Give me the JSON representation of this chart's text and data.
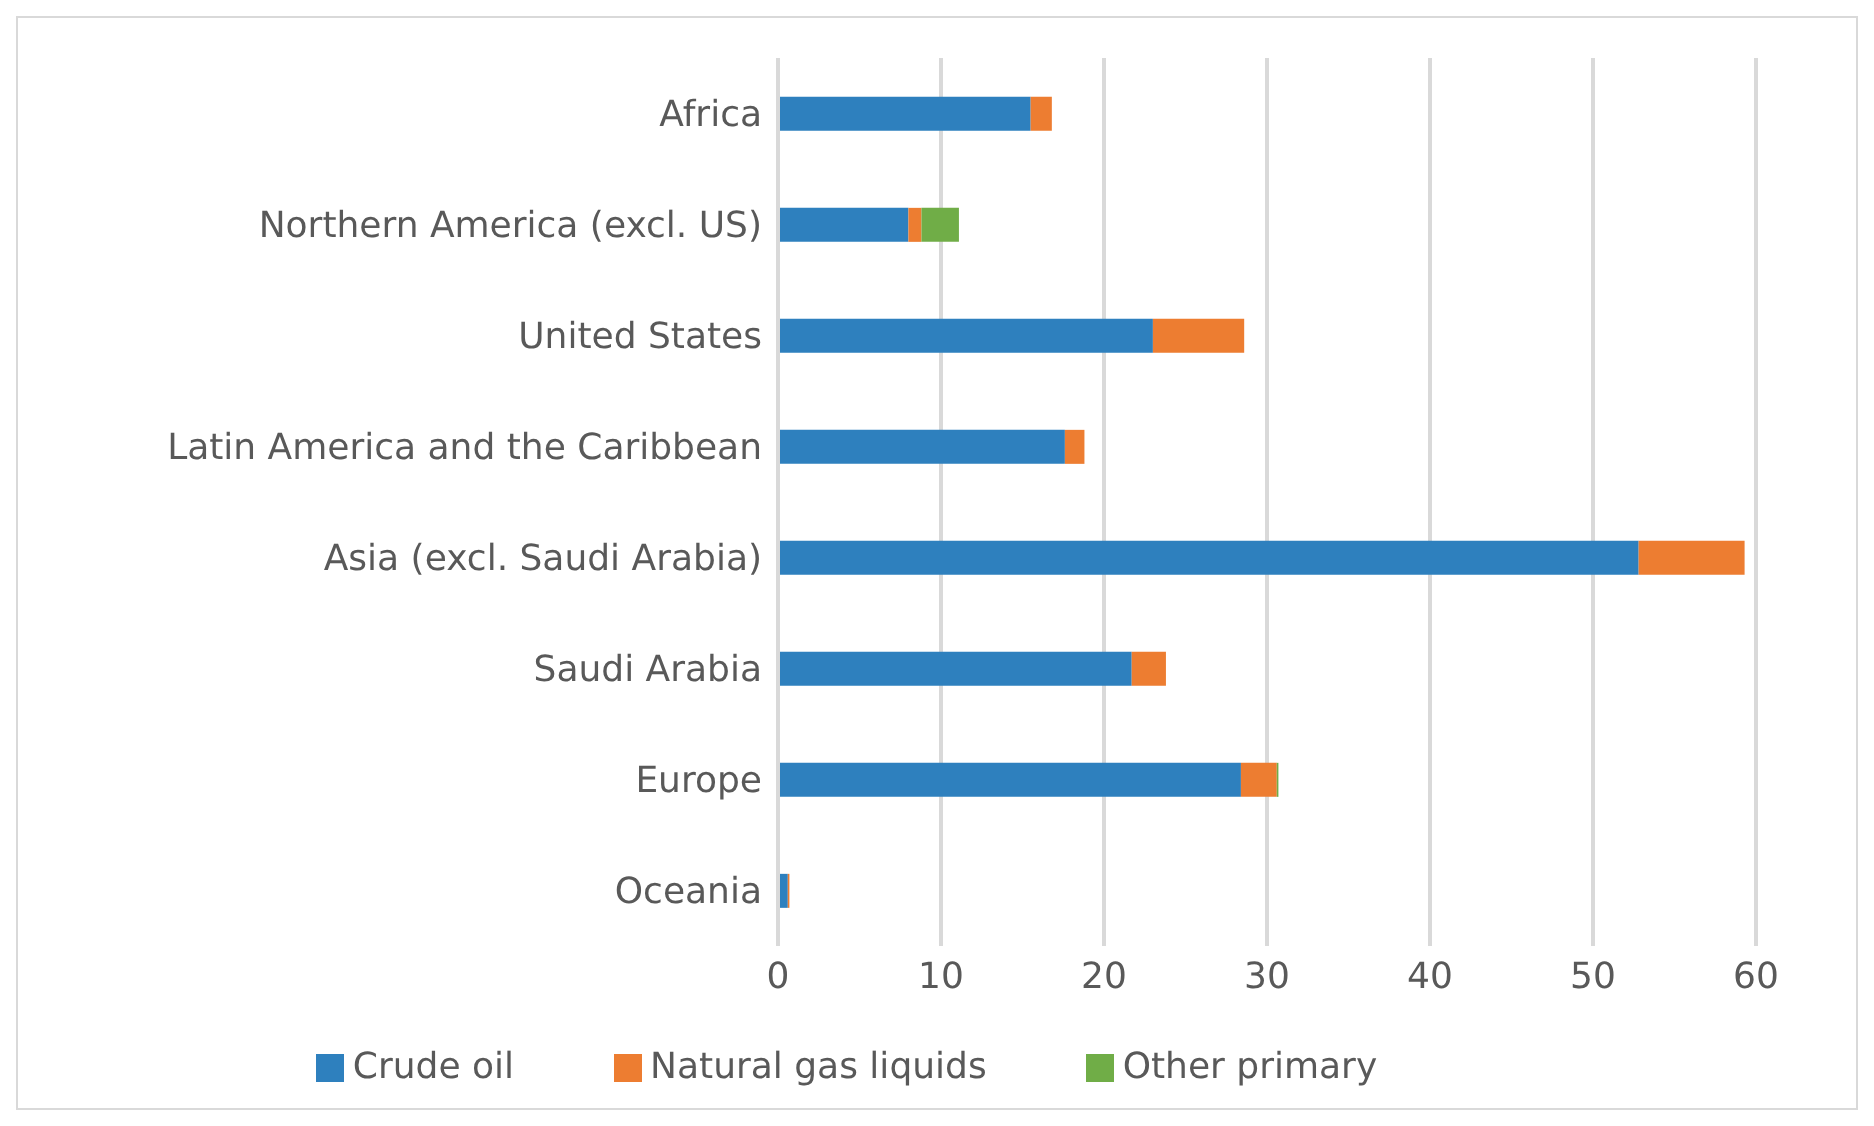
{
  "chart_data": {
    "type": "bar",
    "orientation": "horizontal",
    "stacked": true,
    "categories": [
      "Africa",
      "Northern America (excl. US)",
      "United States",
      "Latin America and the Caribbean",
      "Asia (excl. Saudi Arabia)",
      "Saudi Arabia",
      "Europe",
      "Oceania"
    ],
    "series": [
      {
        "name": "Crude oil",
        "color": "#2e80be",
        "values": [
          15.5,
          8.0,
          23.0,
          17.6,
          52.8,
          21.7,
          28.4,
          0.6
        ]
      },
      {
        "name": "Natural gas liquids",
        "color": "#ed7d31",
        "values": [
          1.3,
          0.8,
          5.6,
          1.2,
          6.5,
          2.1,
          2.2,
          0.1
        ]
      },
      {
        "name": "Other primary",
        "color": "#70ad47",
        "values": [
          0,
          2.3,
          0,
          0,
          null,
          0,
          0.1,
          0
        ]
      }
    ],
    "xlim": [
      0,
      60
    ],
    "xticks": [
      0,
      10,
      20,
      30,
      40,
      50,
      60
    ],
    "grid": "x",
    "legend": "bottom"
  }
}
